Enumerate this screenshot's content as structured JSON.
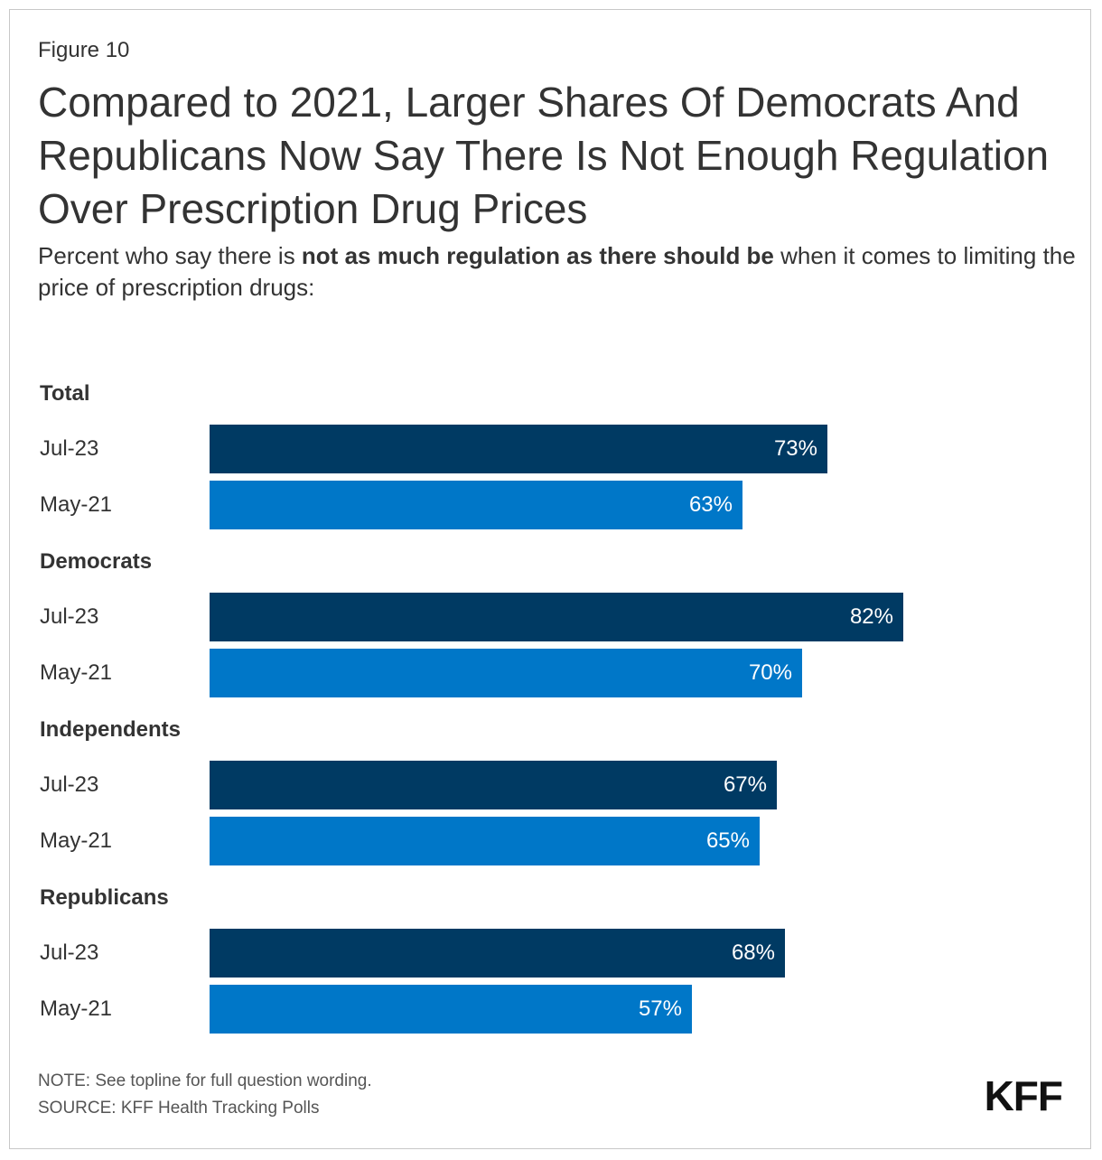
{
  "figure_label": "Figure 10",
  "title": "Compared to 2021, Larger Shares Of Democrats And Republicans Now Say There Is Not Enough Regulation Over Prescription Drug Prices",
  "subtitle": {
    "before": "Percent who say there is ",
    "bold": "not as much regulation as there should be",
    "after": " when it comes to limiting the price of prescription drugs:"
  },
  "colors": {
    "jul23": "#003a63",
    "may21": "#0077c8"
  },
  "chart_data": {
    "type": "bar",
    "orientation": "horizontal",
    "xlim": [
      0,
      100
    ],
    "groups": [
      {
        "name": "Total",
        "rows": [
          {
            "label": "Jul-23",
            "value": 73,
            "value_label": "73%",
            "series": "jul23"
          },
          {
            "label": "May-21",
            "value": 63,
            "value_label": "63%",
            "series": "may21"
          }
        ]
      },
      {
        "name": "Democrats",
        "rows": [
          {
            "label": "Jul-23",
            "value": 82,
            "value_label": "82%",
            "series": "jul23"
          },
          {
            "label": "May-21",
            "value": 70,
            "value_label": "70%",
            "series": "may21"
          }
        ]
      },
      {
        "name": "Independents",
        "rows": [
          {
            "label": "Jul-23",
            "value": 67,
            "value_label": "67%",
            "series": "jul23"
          },
          {
            "label": "May-21",
            "value": 65,
            "value_label": "65%",
            "series": "may21"
          }
        ]
      },
      {
        "name": "Republicans",
        "rows": [
          {
            "label": "Jul-23",
            "value": 68,
            "value_label": "68%",
            "series": "jul23"
          },
          {
            "label": "May-21",
            "value": 57,
            "value_label": "57%",
            "series": "may21"
          }
        ]
      }
    ]
  },
  "note": "NOTE: See topline for full question wording.",
  "source": "SOURCE: KFF Health Tracking Polls",
  "logo_text": "KFF"
}
